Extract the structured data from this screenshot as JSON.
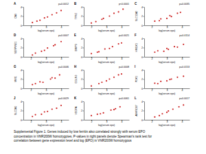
{
  "chart_data": [
    {
      "type": "scatter",
      "title": "A",
      "y_label": "CA9",
      "x_label": "log(serum epo)",
      "annotation": "p=0.0012",
      "x": [
        2.1,
        2.4,
        2.6,
        2.9,
        3.1,
        3.4,
        3.7,
        4.0
      ],
      "y": [
        0.6,
        0.9,
        1.1,
        1.6,
        1.8,
        2.3,
        2.7,
        3.2
      ],
      "xlim": [
        1.5,
        4.5
      ],
      "ylim": [
        0,
        4
      ],
      "xticks": [
        2,
        3,
        4
      ],
      "yticks": [
        0,
        2,
        4
      ],
      "color": "#cc2222",
      "marker": "circle"
    },
    {
      "type": "scatter",
      "title": "B",
      "y_label": "TFRC",
      "x_label": "log(serum epo)",
      "annotation": "p<0.0001",
      "x": [
        2.0,
        2.3,
        2.7,
        2.8,
        3.2,
        3.5,
        3.8,
        4.1
      ],
      "y": [
        0.5,
        0.8,
        1.3,
        1.5,
        2.0,
        2.6,
        2.9,
        3.5
      ],
      "xlim": [
        1.5,
        4.5
      ],
      "ylim": [
        0,
        4
      ],
      "xticks": [
        2,
        3,
        4
      ],
      "yticks": [
        0,
        2,
        4
      ],
      "color": "#cc2222",
      "marker": "circle"
    },
    {
      "type": "scatter",
      "title": "C",
      "y_label": "SLC11A2",
      "x_label": "log(serum epo)",
      "annotation": "p=0.0035",
      "x": [
        2.2,
        2.5,
        2.6,
        3.0,
        3.2,
        3.3,
        3.7,
        3.9
      ],
      "y": [
        0.9,
        1.0,
        1.4,
        1.5,
        2.1,
        1.9,
        2.6,
        2.8
      ],
      "xlim": [
        1.5,
        4.5
      ],
      "ylim": [
        0,
        4
      ],
      "xticks": [
        2,
        3,
        4
      ],
      "yticks": [
        0,
        2,
        4
      ],
      "color": "#cc2222",
      "marker": "circle"
    },
    {
      "type": "scatter",
      "title": "D",
      "y_label": "SERPINE1",
      "x_label": "log(serum epo)",
      "annotation": "p=0.0007",
      "x": [
        2.1,
        2.3,
        2.7,
        2.9,
        3.1,
        3.5,
        3.6,
        4.0
      ],
      "y": [
        0.4,
        0.8,
        1.2,
        1.4,
        1.9,
        2.4,
        2.6,
        3.3
      ],
      "xlim": [
        1.5,
        4.5
      ],
      "ylim": [
        0,
        4
      ],
      "xticks": [
        2,
        3,
        4
      ],
      "yticks": [
        0,
        2,
        4
      ],
      "color": "#cc2222",
      "marker": "circle"
    },
    {
      "type": "scatter",
      "title": "E",
      "y_label": "BNIP3",
      "x_label": "log(serum epo)",
      "annotation": "p=0.0021",
      "x": [
        2.0,
        2.4,
        2.5,
        2.9,
        3.2,
        3.4,
        3.8,
        4.0
      ],
      "y": [
        0.7,
        1.0,
        1.1,
        1.7,
        1.8,
        2.2,
        2.8,
        3.0
      ],
      "xlim": [
        1.5,
        4.5
      ],
      "ylim": [
        0,
        4
      ],
      "xticks": [
        2,
        3,
        4
      ],
      "yticks": [
        0,
        2,
        4
      ],
      "color": "#cc2222",
      "marker": "circle"
    },
    {
      "type": "scatter",
      "title": "F",
      "y_label": "HMOX1",
      "x_label": "log(serum epo)",
      "annotation": "p=0.0114",
      "x": [
        2.2,
        2.4,
        2.8,
        3.0,
        3.1,
        3.5,
        3.7,
        4.1
      ],
      "y": [
        1.0,
        1.3,
        1.2,
        1.8,
        1.6,
        2.2,
        2.1,
        2.7
      ],
      "xlim": [
        1.5,
        4.5
      ],
      "ylim": [
        0,
        4
      ],
      "xticks": [
        2,
        3,
        4
      ],
      "yticks": [
        0,
        2,
        4
      ],
      "color": "#cc2222",
      "marker": "circle"
    },
    {
      "type": "scatter",
      "title": "G",
      "y_label": "MXI1",
      "x_label": "log(serum epo)",
      "annotation": "p=0.0046",
      "x": [
        2.1,
        2.3,
        2.6,
        2.8,
        3.3,
        3.4,
        3.6,
        3.9
      ],
      "y": [
        0.8,
        1.0,
        1.4,
        1.3,
        2.0,
        2.3,
        2.2,
        2.9
      ],
      "xlim": [
        1.5,
        4.5
      ],
      "ylim": [
        0,
        4
      ],
      "xticks": [
        2,
        3,
        4
      ],
      "yticks": [
        0,
        2,
        4
      ],
      "color": "#cc2222",
      "marker": "circle"
    },
    {
      "type": "scatter",
      "title": "H",
      "y_label": "EGLN3",
      "x_label": "log(serum epo)",
      "annotation": "p=0.0008",
      "x": [
        2.0,
        2.5,
        2.7,
        3.0,
        3.2,
        3.5,
        3.8,
        4.0
      ],
      "y": [
        0.5,
        1.0,
        1.3,
        1.6,
        2.0,
        2.4,
        2.9,
        3.1
      ],
      "xlim": [
        1.5,
        4.5
      ],
      "ylim": [
        0,
        4
      ],
      "xticks": [
        2,
        3,
        4
      ],
      "yticks": [
        0,
        2,
        4
      ],
      "color": "#cc2222",
      "marker": "circle"
    },
    {
      "type": "scatter",
      "title": "I",
      "y_label": "PDK1",
      "x_label": "log(serum epo)",
      "annotation": "p=0.0153",
      "x": [
        2.2,
        2.4,
        2.6,
        3.0,
        3.2,
        3.3,
        3.7,
        4.1
      ],
      "y": [
        1.1,
        1.0,
        1.5,
        1.6,
        1.9,
        2.0,
        2.4,
        2.6
      ],
      "xlim": [
        1.5,
        4.5
      ],
      "ylim": [
        0,
        4
      ],
      "xticks": [
        2,
        3,
        4
      ],
      "yticks": [
        0,
        2,
        4
      ],
      "color": "#cc2222",
      "marker": "circle"
    },
    {
      "type": "scatter",
      "title": "J",
      "y_label": "SLC2A1",
      "x_label": "log(serum epo)",
      "annotation": "p=0.0029",
      "x": [
        2.1,
        2.3,
        2.7,
        2.9,
        3.1,
        3.4,
        3.7,
        4.0
      ],
      "y": [
        0.7,
        1.1,
        1.2,
        1.7,
        1.8,
        2.3,
        2.5,
        3.1
      ],
      "xlim": [
        1.5,
        4.5
      ],
      "ylim": [
        0,
        4
      ],
      "xticks": [
        2,
        3,
        4
      ],
      "yticks": [
        0,
        2,
        4
      ],
      "color": "#cc2222",
      "marker": "circle"
    },
    {
      "type": "scatter",
      "title": "K",
      "y_label": "VEGFA",
      "x_label": "log(serum epo)",
      "annotation": "p=0.0061",
      "x": [
        2.0,
        2.4,
        2.6,
        2.8,
        3.3,
        3.5,
        3.6,
        3.9
      ],
      "y": [
        0.9,
        1.2,
        1.3,
        1.5,
        2.1,
        2.2,
        2.4,
        2.8
      ],
      "xlim": [
        1.5,
        4.5
      ],
      "ylim": [
        0,
        4
      ],
      "xticks": [
        2,
        3,
        4
      ],
      "yticks": [
        0,
        2,
        4
      ],
      "color": "#cc2222",
      "marker": "circle"
    },
    {
      "type": "scatter",
      "title": "L",
      "y_label": "ANKRD37",
      "x_label": "log(serum epo)",
      "annotation": "p=0.0017",
      "x": [
        2.2,
        2.5,
        2.7,
        3.0,
        3.1,
        3.4,
        3.8,
        4.1
      ],
      "y": [
        0.6,
        0.9,
        1.3,
        1.6,
        1.9,
        2.3,
        2.8,
        3.2
      ],
      "xlim": [
        1.5,
        4.5
      ],
      "ylim": [
        0,
        4
      ],
      "xticks": [
        2,
        3,
        4
      ],
      "yticks": [
        0,
        2,
        4
      ],
      "color": "#cc2222",
      "marker": "circle"
    }
  ],
  "caption": [
    "Supplemental Figure 1. Genes induced by low ferritin also correlated strongly with serum EPO",
    "concentration in VhlR200W homozygotes. P-values in right panels denote Spearman's rank test for",
    "correlation between gene expression level and log (EPO) in VhlR200W homozygous"
  ]
}
